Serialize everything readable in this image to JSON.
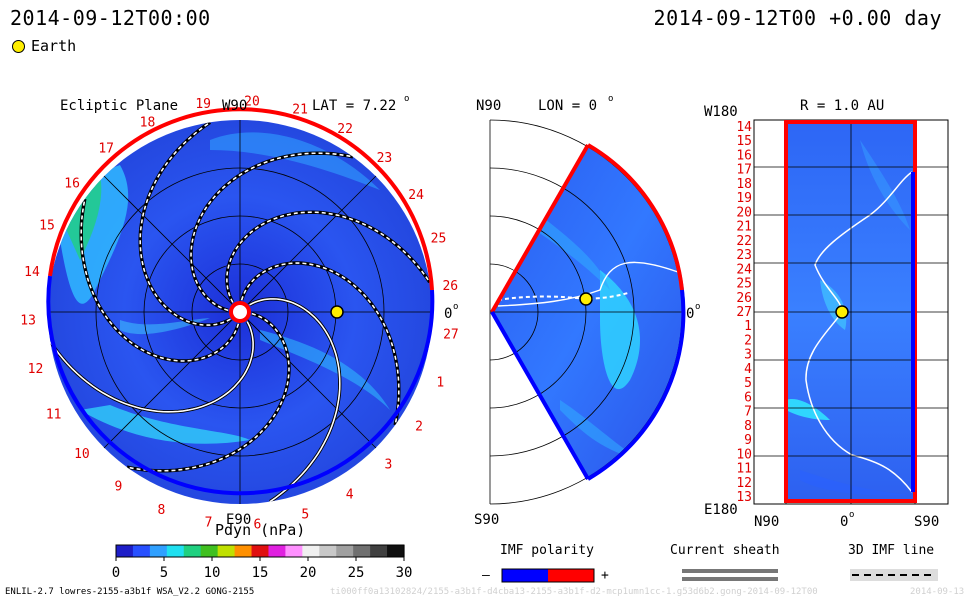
{
  "header": {
    "left_time": "2014-09-12T00:00",
    "right_time": "2014-09-12T00 +0.00 day",
    "legend_label": "Earth"
  },
  "ecliptic": {
    "title": "Ecliptic Plane",
    "lat_label": "LAT = 7.22",
    "lat_sup": "o",
    "top_label": "W90",
    "bottom_label": "E90",
    "right_label": "0",
    "right_sup": "o",
    "carrington_numbers": [
      "19",
      "20",
      "21",
      "22",
      "23",
      "24",
      "25",
      "26",
      "27",
      "1",
      "2",
      "3",
      "4",
      "5",
      "6",
      "7",
      "8",
      "9",
      "10",
      "11",
      "12",
      "13",
      "14",
      "15",
      "16",
      "17",
      "18"
    ]
  },
  "meridional": {
    "top_label": "N90",
    "lon_label": "LON = 0",
    "lon_sup": "o",
    "bottom_label": "S90",
    "right_label": "0",
    "right_sup": "o"
  },
  "r_panel": {
    "title": "R = 1.0 AU",
    "top_left": "W180",
    "bottom_left": "E180",
    "bottom_labels": [
      "N90",
      "0",
      "S90"
    ],
    "bottom_sup": "o",
    "row_labels": [
      "14",
      "15",
      "16",
      "17",
      "18",
      "19",
      "20",
      "21",
      "22",
      "23",
      "24",
      "25",
      "26",
      "27",
      "1",
      "2",
      "3",
      "4",
      "5",
      "6",
      "7",
      "8",
      "9",
      "10",
      "11",
      "12",
      "13"
    ]
  },
  "colorbar": {
    "title": "Pdyn (nPa)",
    "ticks": [
      "0",
      "5",
      "10",
      "15",
      "20",
      "25",
      "30"
    ],
    "range": [
      0,
      30
    ],
    "colors": [
      "#1e1ec8",
      "#2850ff",
      "#30a0ff",
      "#20e0f0",
      "#20d080",
      "#40c020",
      "#c0e000",
      "#ff9000",
      "#e01010",
      "#e020e0",
      "#ff90ff",
      "#f0f0f0",
      "#c8c8c8",
      "#a0a0a0",
      "#707070",
      "#404040",
      "#101010"
    ]
  },
  "legend_bottom": {
    "imf_title": "IMF polarity",
    "imf_minus": "–",
    "imf_plus": "+",
    "imf_neg_color": "#0000ff",
    "imf_pos_color": "#ff0000",
    "sheath_title": "Current sheath",
    "line_title": "3D IMF line"
  },
  "footer": {
    "model": "ENLIL-2.7 lowres-2155-a3b1f WSA_V2.2 GONG-2155",
    "faint": "ti000ff0a13102824/2155-a3b1f-d4cba13-2155-a3b1f-d2-mcp1umn1cc-1.g53d6b2.gong-2014-09-12T00",
    "faint_right": "2014-09-13"
  },
  "chart_data": [
    {
      "type": "heatmap",
      "title": "Ecliptic Plane",
      "quantity": "Pdyn (nPa)",
      "crange": [
        0,
        30
      ],
      "earth": {
        "r_au": 1.0,
        "lon_deg": 0
      },
      "spiral_arms": 8,
      "cme_features": "none visible",
      "latitude_deg": 7.22
    },
    {
      "type": "heatmap",
      "title": "LON = 0",
      "quantity": "Pdyn (nPa)",
      "crange": [
        0,
        30
      ],
      "lat_range_deg": [
        -60,
        60
      ]
    },
    {
      "type": "heatmap",
      "title": "R = 1.0 AU",
      "quantity": "Pdyn (nPa)",
      "crange": [
        0,
        30
      ],
      "x_labels": [
        "N90",
        "0",
        "S90"
      ],
      "y_labels": [
        "W180",
        "E180"
      ]
    }
  ]
}
